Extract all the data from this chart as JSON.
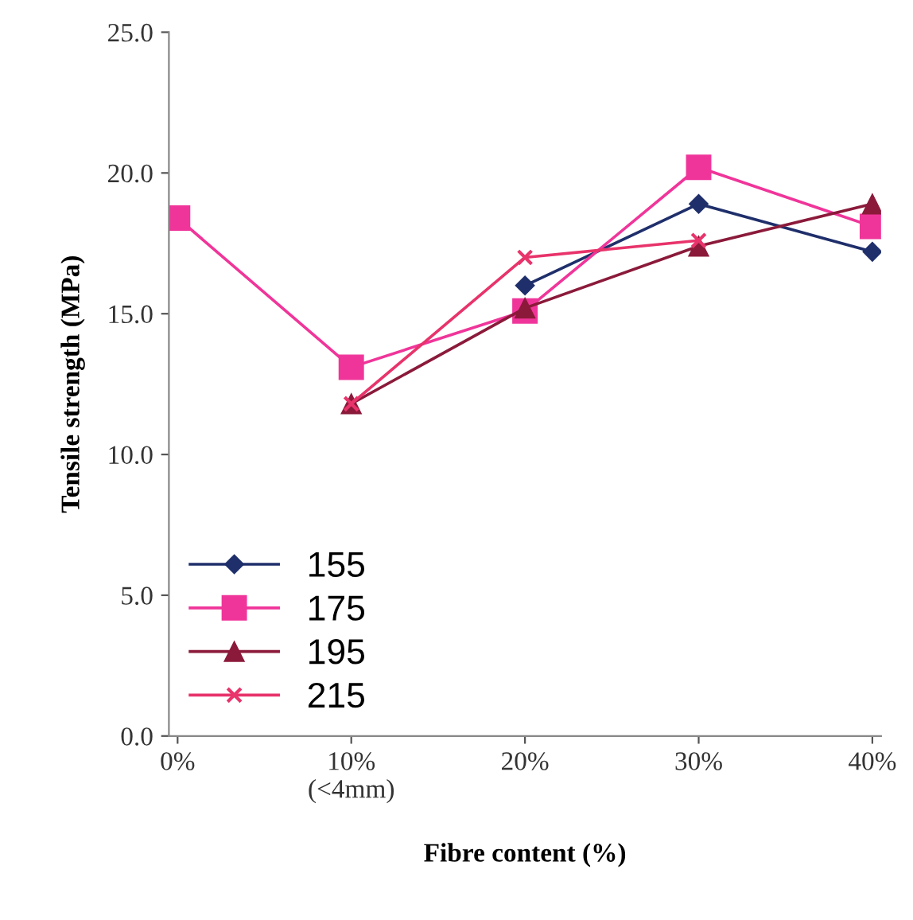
{
  "chart_data": {
    "type": "line",
    "xlabel": "Fibre content (%)",
    "ylabel": "Tensile strength (MPa)",
    "categories": [
      "0%",
      "10%\n(<4mm)",
      "20%",
      "30%",
      "40%"
    ],
    "series": [
      {
        "name": "155",
        "color": "#1f2f6b",
        "marker": "diamond",
        "values": [
          null,
          null,
          16.0,
          18.9,
          17.2
        ]
      },
      {
        "name": "175",
        "color": "#f0359a",
        "marker": "square",
        "values": [
          18.4,
          13.1,
          15.1,
          20.2,
          18.1
        ]
      },
      {
        "name": "195",
        "color": "#8b1a3a",
        "marker": "triangle",
        "values": [
          null,
          11.8,
          15.2,
          17.4,
          18.9
        ]
      },
      {
        "name": "215",
        "color": "#e8336b",
        "marker": "cross",
        "values": [
          null,
          11.8,
          17.0,
          17.6,
          null
        ]
      }
    ],
    "ylim": [
      0,
      25
    ],
    "yticks": [
      {
        "value": 0,
        "label": "0.0"
      },
      {
        "value": 5,
        "label": "5.0"
      },
      {
        "value": 10,
        "label": "10.0"
      },
      {
        "value": 15,
        "label": "15.0"
      },
      {
        "value": 20,
        "label": "20.0"
      },
      {
        "value": 25,
        "label": "25.0"
      }
    ],
    "grid": false,
    "legend": "bottom left",
    "line_style": "solid"
  }
}
